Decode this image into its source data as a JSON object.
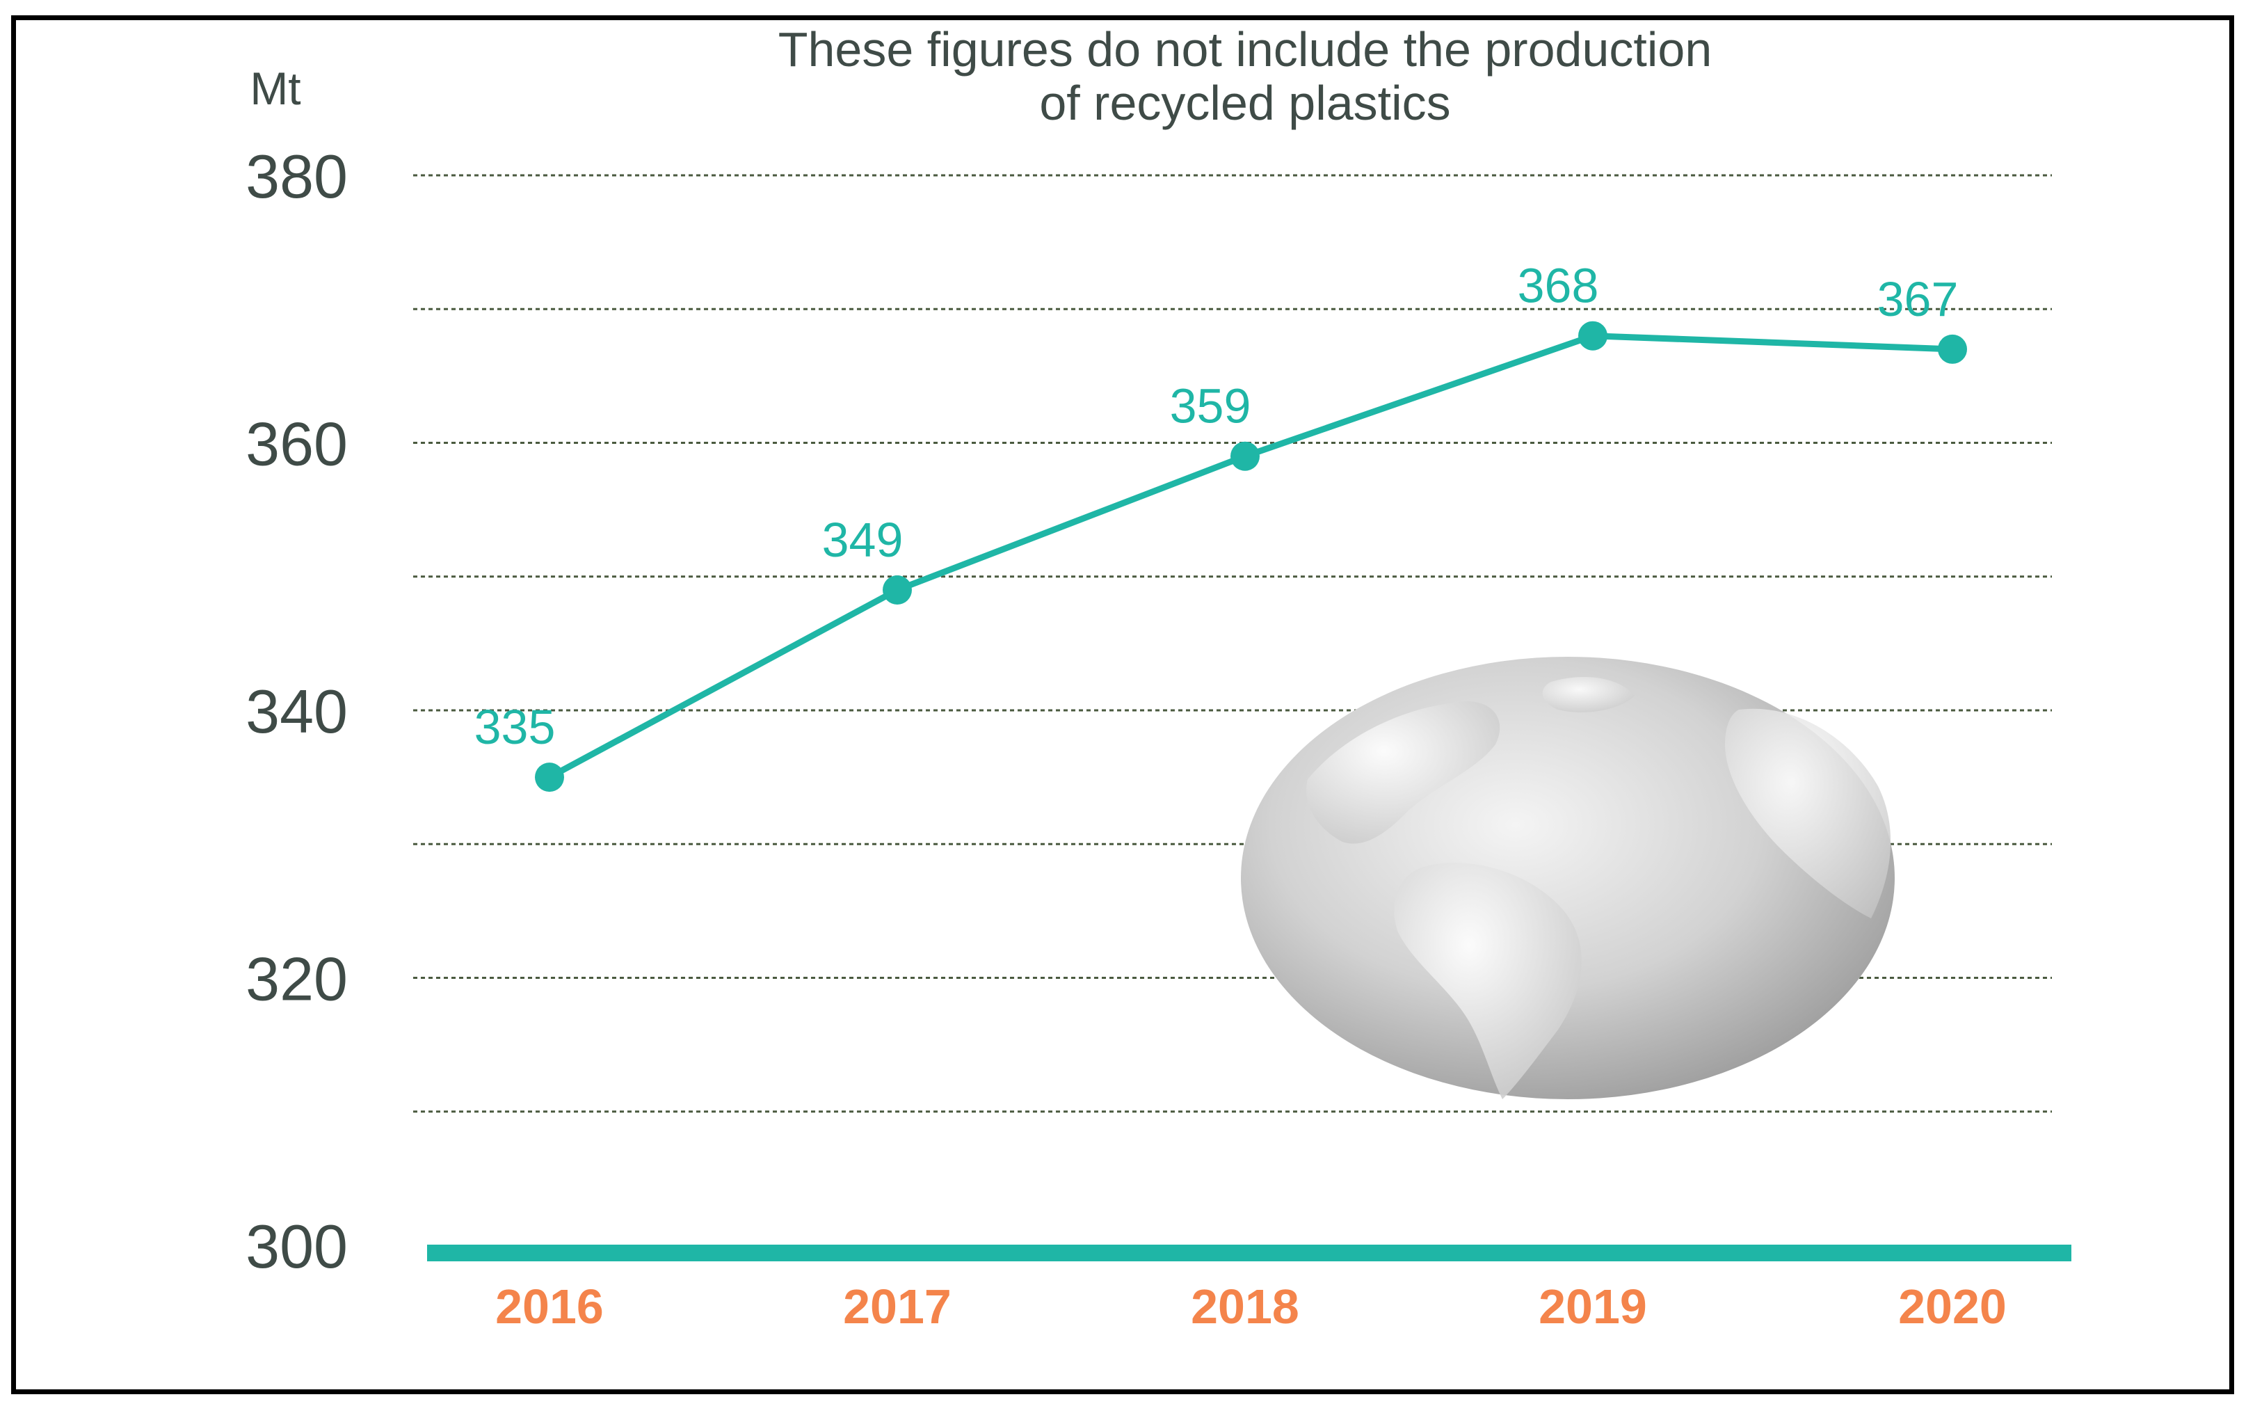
{
  "chart_data": {
    "type": "line",
    "title": [
      "These figures do not include the production",
      "of recycled plastics"
    ],
    "unit": "Mt",
    "categories": [
      "2016",
      "2017",
      "2018",
      "2019",
      "2020"
    ],
    "values": [
      335,
      349,
      359,
      368,
      367
    ],
    "data_labels": [
      "335",
      "349",
      "359",
      "368",
      "367"
    ],
    "ylim": [
      300,
      380
    ],
    "y_ticks": [
      300,
      320,
      340,
      360,
      380
    ],
    "y_tick_labels": [
      "300",
      "320",
      "340",
      "360",
      "380"
    ],
    "grid": true,
    "grid_style": "dotted",
    "colors": {
      "line": "#1fb6a6",
      "x_tick": "#f4844b",
      "text": "#3f4b47",
      "grid": "#4a5a3f"
    },
    "decoration": "globe-icon"
  }
}
